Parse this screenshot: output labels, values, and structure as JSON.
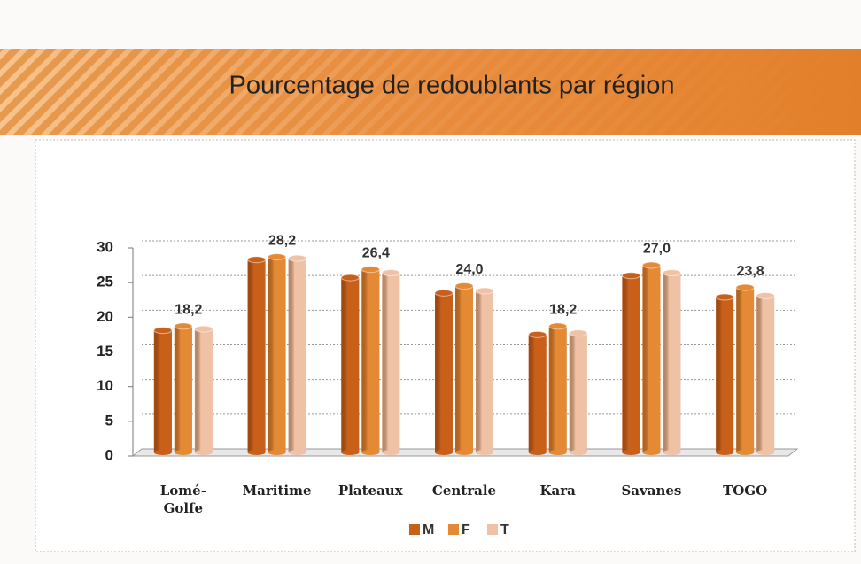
{
  "chart_data": {
    "type": "bar",
    "title": "Pourcentage de redoublants par région",
    "categories": [
      "Lomé-Golfe",
      "Maritime",
      "Plateaux",
      "Centrale",
      "Kara",
      "Savanes",
      "TOGO"
    ],
    "series": [
      {
        "name": "M",
        "color": "#c9601a",
        "values": [
          17.6,
          27.8,
          25.2,
          23.0,
          17.0,
          25.5,
          22.4
        ]
      },
      {
        "name": "F",
        "color": "#e48a35",
        "values": [
          18.2,
          28.2,
          26.4,
          24.0,
          18.2,
          27.0,
          23.8
        ],
        "value_labels": [
          "18,2",
          "28,2",
          "26,4",
          "24,0",
          "18,2",
          "27,0",
          "23,8"
        ]
      },
      {
        "name": "T",
        "color": "#efc2a6",
        "values": [
          17.8,
          28.0,
          25.9,
          23.3,
          17.2,
          25.9,
          22.6
        ]
      }
    ],
    "ylim": [
      0,
      30
    ],
    "yticks": [
      0,
      5,
      10,
      15,
      20,
      25,
      30
    ],
    "grid": true
  }
}
